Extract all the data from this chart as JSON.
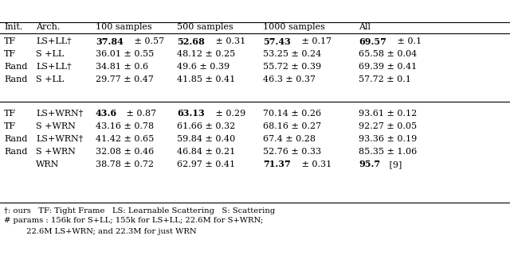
{
  "headers": [
    "Init.",
    "Arch.",
    "100 samples",
    "500 samples",
    "1000 samples",
    "All"
  ],
  "group1": [
    {
      "init": "TF",
      "arch": "LS+LL†",
      "c100": {
        "text": "37.84 ± 0.57",
        "bold_part": "37.84"
      },
      "c500": {
        "text": "52.68 ± 0.31",
        "bold_part": "52.68"
      },
      "c1000": {
        "text": "57.43 ± 0.17",
        "bold_part": "57.43"
      },
      "call": {
        "text": "69.57 ± 0.1",
        "bold_part": "69.57"
      }
    },
    {
      "init": "TF",
      "arch": "S +LL",
      "c100": {
        "text": "36.01 ± 0.55",
        "bold_part": ""
      },
      "c500": {
        "text": "48.12 ± 0.25",
        "bold_part": ""
      },
      "c1000": {
        "text": "53.25 ± 0.24",
        "bold_part": ""
      },
      "call": {
        "text": "65.58 ± 0.04",
        "bold_part": ""
      }
    },
    {
      "init": "Rand",
      "arch": "LS+LL†",
      "c100": {
        "text": "34.81 ± 0.6",
        "bold_part": ""
      },
      "c500": {
        "text": "49.6 ± 0.39",
        "bold_part": ""
      },
      "c1000": {
        "text": "55.72 ± 0.39",
        "bold_part": ""
      },
      "call": {
        "text": "69.39 ± 0.41",
        "bold_part": ""
      }
    },
    {
      "init": "Rand",
      "arch": "S +LL",
      "c100": {
        "text": "29.77 ± 0.47",
        "bold_part": ""
      },
      "c500": {
        "text": "41.85 ± 0.41",
        "bold_part": ""
      },
      "c1000": {
        "text": "46.3 ± 0.37",
        "bold_part": ""
      },
      "call": {
        "text": "57.72 ± 0.1",
        "bold_part": ""
      }
    }
  ],
  "group2": [
    {
      "init": "TF",
      "arch": "LS+WRN†",
      "c100": {
        "text": "43.6 ± 0.87",
        "bold_part": "43.6"
      },
      "c500": {
        "text": "63.13 ± 0.29",
        "bold_part": "63.13"
      },
      "c1000": {
        "text": "70.14 ± 0.26",
        "bold_part": ""
      },
      "call": {
        "text": "93.61 ± 0.12",
        "bold_part": ""
      }
    },
    {
      "init": "TF",
      "arch": "S +WRN",
      "c100": {
        "text": "43.16 ± 0.78",
        "bold_part": ""
      },
      "c500": {
        "text": "61.66 ± 0.32",
        "bold_part": ""
      },
      "c1000": {
        "text": "68.16 ± 0.27",
        "bold_part": ""
      },
      "call": {
        "text": "92.27 ± 0.05",
        "bold_part": ""
      }
    },
    {
      "init": "Rand",
      "arch": "LS+WRN†",
      "c100": {
        "text": "41.42 ± 0.65",
        "bold_part": ""
      },
      "c500": {
        "text": "59.84 ± 0.40",
        "bold_part": ""
      },
      "c1000": {
        "text": "67.4 ± 0.28",
        "bold_part": ""
      },
      "call": {
        "text": "93.36 ± 0.19",
        "bold_part": ""
      }
    },
    {
      "init": "Rand",
      "arch": "S +WRN",
      "c100": {
        "text": "32.08 ± 0.46",
        "bold_part": ""
      },
      "c500": {
        "text": "46.84 ± 0.21",
        "bold_part": ""
      },
      "c1000": {
        "text": "52.76 ± 0.33",
        "bold_part": ""
      },
      "call": {
        "text": "85.35 ± 1.06",
        "bold_part": ""
      }
    },
    {
      "init": "",
      "arch": "WRN",
      "c100": {
        "text": "38.78 ± 0.72",
        "bold_part": ""
      },
      "c500": {
        "text": "62.97 ± 0.41",
        "bold_part": ""
      },
      "c1000": {
        "text": "71.37 ± 0.31",
        "bold_part": "71.37"
      },
      "call": {
        "text": "95.7 [9]",
        "bold_part": "95.7"
      }
    }
  ],
  "footnote_line1": "†: ours   TF: Tight Frame   LS: Learnable Scattering   S: Scattering",
  "footnote_line2": "# params : 156k for S+LL; 155k for LS+LL; 22.6M for S+WRN;",
  "footnote_line3": "         22.6M LS+WRN; and 22.3M for just WRN",
  "bg_color": "#ffffff",
  "text_color": "#000000",
  "fs": 8.0,
  "hfs": 8.0,
  "ffs": 7.2
}
